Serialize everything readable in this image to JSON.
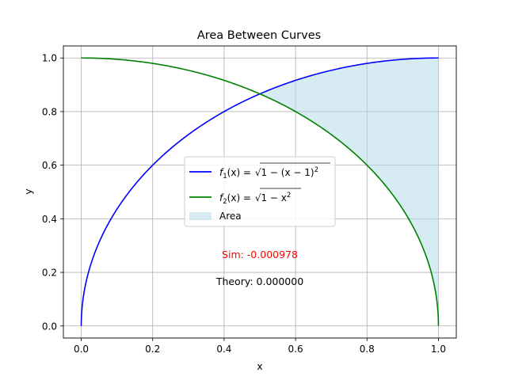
{
  "chart_data": {
    "type": "line",
    "title": "Area Between Curves",
    "xlabel": "x",
    "ylabel": "y",
    "xlim": [
      -0.05,
      1.05
    ],
    "ylim": [
      -0.045,
      1.045
    ],
    "xticks": [
      0.0,
      0.2,
      0.4,
      0.6,
      0.8,
      1.0
    ],
    "xtick_labels": [
      "0.0",
      "0.2",
      "0.4",
      "0.6",
      "0.8",
      "1.0"
    ],
    "yticks": [
      0.0,
      0.2,
      0.4,
      0.6,
      0.8,
      1.0
    ],
    "ytick_labels": [
      "0.0",
      "0.2",
      "0.4",
      "0.6",
      "0.8",
      "1.0"
    ],
    "grid": true,
    "legend_position": "center",
    "series": [
      {
        "name_prefix": "f",
        "name_sub": "1",
        "name_rest": "(x) = ",
        "name_radicand_a": "1 − (x − 1)",
        "name_radicand_exp": "2",
        "name_radicand_b": "",
        "color": "#0000ff",
        "formula": "sqrt(1-(x-1)^2)"
      },
      {
        "name_prefix": "f",
        "name_sub": "2",
        "name_rest": "(x) = ",
        "name_radicand_a": "1 − x",
        "name_radicand_exp": "2",
        "name_radicand_b": "",
        "color": "#008000",
        "formula": "sqrt(1-x^2)"
      }
    ],
    "area": {
      "name": "Area",
      "color": "#add8e6",
      "x_range": [
        0.5,
        1.0
      ],
      "between": "f1 above f2"
    },
    "annotations": [
      {
        "text": "Sim: -0.000978",
        "x": 0.5,
        "y": 0.26,
        "color": "#ff0000"
      },
      {
        "text": "Theory: 0.000000",
        "x": 0.5,
        "y": 0.16,
        "color": "#000000"
      }
    ]
  }
}
